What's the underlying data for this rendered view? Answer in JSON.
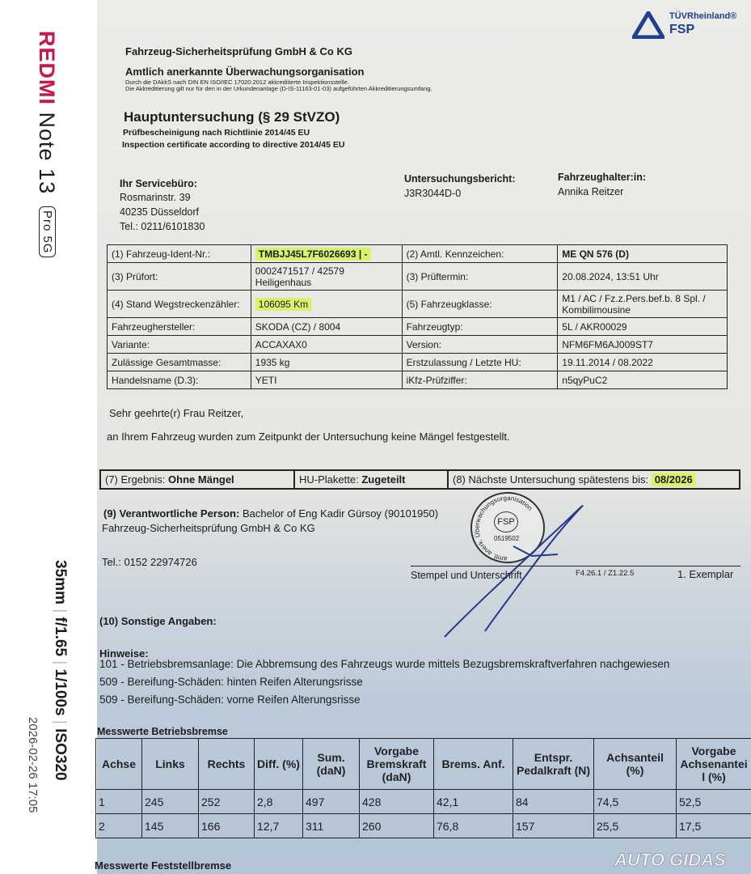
{
  "camera_strip": {
    "brand": "REDMI",
    "model": "Note 13",
    "variant": "Pro 5G",
    "focal_length": "35mm",
    "aperture": "f/1.65",
    "shutter": "1/100s",
    "iso": "ISO320",
    "datetime": "2026-02-26 17:05",
    "brand_color": "#c8174b"
  },
  "logo": {
    "brand": "TÜVRheinland®",
    "sub": "FSP",
    "color": "#1d3f8f"
  },
  "header": {
    "company": "Fahrzeug-Sicherheitsprüfung GmbH & Co KG",
    "org_title": "Amtlich anerkannte Überwachungsorganisation",
    "accreditation_1": "Durch die DAkkS nach DIN EN ISO/IEC 17020:2012 akkreditierte Inspektionsstelle.",
    "accreditation_2": "Die Akkreditierung gilt nur für den in der Urkundenanlage (D-IS-11163-01-03) aufgeführten Akkreditierungsumfang.",
    "title": "Hauptuntersuchung (§ 29 StVZO)",
    "subtitle_de": "Prüfbescheinigung nach Richtlinie 2014/45 EU",
    "subtitle_en": "Inspection certificate according to directive 2014/45 EU"
  },
  "address": {
    "service_label": "Ihr Servicebüro:",
    "street": "Rosmarinstr. 39",
    "city": "40235 Düsseldorf",
    "phone": "Tel.: 0211/6101830",
    "report_label": "Untersuchungsbericht:",
    "report_no": "J3R3044D-0",
    "holder_label": "Fahrzeughalter:in:",
    "holder": "Annika Reitzer"
  },
  "vehicle": [
    {
      "l1": "(1) Fahrzeug-Ident-Nr.:",
      "v1": "TMBJJ45L7F6026693 | -",
      "l2": "(2) Amtl. Kennzeichen:",
      "v2": "ME QN 576 (D)"
    },
    {
      "l1": "(3) Prüfort:",
      "v1": "0002471517 / 42579 Heiligenhaus",
      "l2": "(3) Prüftermin:",
      "v2": "20.08.2024, 13:51 Uhr"
    },
    {
      "l1": "(4) Stand Wegstreckenzähler:",
      "v1": "106095 Km",
      "l2": "(5) Fahrzeugklasse:",
      "v2": "M1 / AC / Fz.z.Pers.bef.b. 8 Spl. / Kombilimousine"
    },
    {
      "l1": "Fahrzeughersteller:",
      "v1": "SKODA (CZ) / 8004",
      "l2": "Fahrzeugtyp:",
      "v2": "5L / AKR00029"
    },
    {
      "l1": "Variante:",
      "v1": "ACCAXAX0",
      "l2": "Version:",
      "v2": "NFM6FM6AJ009ST7"
    },
    {
      "l1": "Zulässige Gesamtmasse:",
      "v1": "1935 kg",
      "l2": "Erstzulassung / Letzte HU:",
      "v2": "19.11.2014 / 08.2022"
    },
    {
      "l1": "Handelsname (D.3):",
      "v1": "YETI",
      "l2": "iKfz-Prüfziffer:",
      "v2": "n5qyPuC2"
    }
  ],
  "letter": {
    "salutation": "Sehr geehrte(r) Frau Reitzer,",
    "body": "an Ihrem Fahrzeug wurden zum Zeitpunkt der Untersuchung keine Mängel festgestellt."
  },
  "result": {
    "result_label": "(7) Ergebnis:",
    "result_value": "Ohne Mängel",
    "plakette_label": "HU-Plakette:",
    "plakette_value": "Zugeteilt",
    "next_label": "(8) Nächste Untersuchung spätestens bis:",
    "next_value": "08/2026"
  },
  "responsible": {
    "label": "(9) Verantwortliche Person:",
    "name": "Bachelor of Eng Kadir Gürsoy (90101950)",
    "company": "Fahrzeug-Sicherheitsprüfung GmbH & Co KG",
    "phone": "Tel.: 0152 22974726",
    "stamp_text": "amtl. anerk. Überwachungsorganisation",
    "stamp_logo": "FSP",
    "stamp_no": "0519502",
    "sign_label": "Stempel und Unterschrift",
    "form_code": "F4.26.1 / Z1.22.5",
    "copy": "1. Exemplar"
  },
  "other": {
    "label": "(10) Sonstige Angaben:",
    "notes_label": "Hinweise:",
    "notes": [
      "101 - Betriebsbremsanlage: Die Abbremsung des Fahrzeugs wurde mittels Bezugsbremskraftverfahren nachgewiesen",
      "509 - Bereifung-Schäden: hinten Reifen Alterungsrisse",
      "509 - Bereifung-Schäden: vorne Reifen Alterungsrisse"
    ]
  },
  "brake": {
    "title": "Messwerte Betriebsbremse",
    "headers": [
      "Achse",
      "Links",
      "Rechts",
      "Diff. (%)",
      "Sum. (daN)",
      "Vorgabe Bremskraft (daN)",
      "Brems. Anf.",
      "Entspr. Pedalkraft (N)",
      "Achsanteil (%)",
      "Vorgabe Achsenanteil (%)"
    ],
    "rows": [
      [
        "1",
        "245",
        "252",
        "2,8",
        "497",
        "428",
        "42,1",
        "84",
        "74,5",
        "52,5"
      ],
      [
        "2",
        "145",
        "166",
        "12,7",
        "311",
        "260",
        "76,8",
        "157",
        "25,5",
        "17,5"
      ]
    ],
    "next_title": "Messwerte Feststellbremse"
  },
  "watermark": "AUTO GIDAS"
}
